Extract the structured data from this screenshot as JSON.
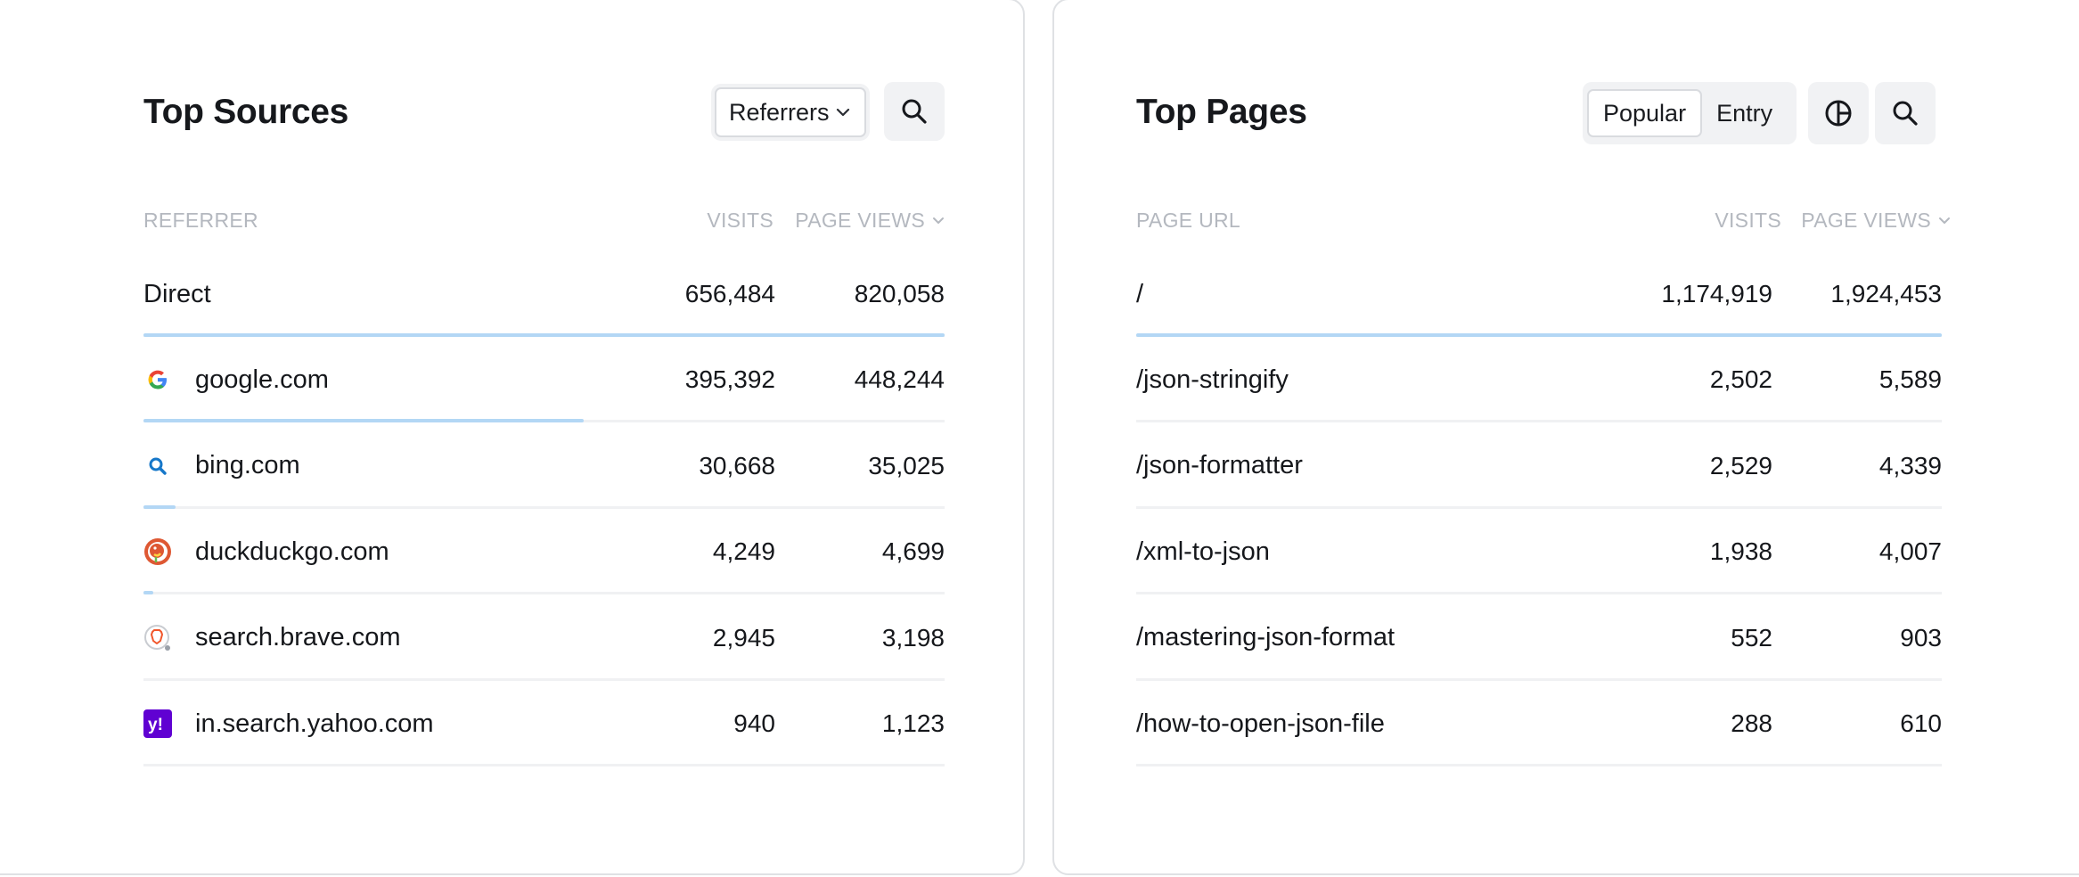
{
  "sources": {
    "title": "Top Sources",
    "select_value": "Referrers",
    "columns": {
      "name": "REFERRER",
      "visits": "VISITS",
      "pageviews": "PAGE VIEWS"
    },
    "rows": [
      {
        "name": "Direct",
        "visits": "656,484",
        "pageviews": "820,058",
        "share": 1.0,
        "icon": "none"
      },
      {
        "name": "google.com",
        "visits": "395,392",
        "pageviews": "448,244",
        "share": 0.55,
        "icon": "google-icon"
      },
      {
        "name": "bing.com",
        "visits": "30,668",
        "pageviews": "35,025",
        "share": 0.04,
        "icon": "bing-icon"
      },
      {
        "name": "duckduckgo.com",
        "visits": "4,249",
        "pageviews": "4,699",
        "share": 0.012,
        "icon": "duckduckgo-icon"
      },
      {
        "name": "search.brave.com",
        "visits": "2,945",
        "pageviews": "3,198",
        "share": 0.0,
        "icon": "brave-icon"
      },
      {
        "name": "in.search.yahoo.com",
        "visits": "940",
        "pageviews": "1,123",
        "share": 0.0,
        "icon": "yahoo-icon"
      }
    ]
  },
  "pages": {
    "title": "Top Pages",
    "tabs": [
      {
        "label": "Popular",
        "active": true
      },
      {
        "label": "Entry",
        "active": false
      }
    ],
    "columns": {
      "name": "PAGE URL",
      "visits": "VISITS",
      "pageviews": "PAGE VIEWS"
    },
    "rows": [
      {
        "name": "/",
        "visits": "1,174,919",
        "pageviews": "1,924,453",
        "share": 1.0
      },
      {
        "name": "/json-stringify",
        "visits": "2,502",
        "pageviews": "5,589",
        "share": 0.0
      },
      {
        "name": "/json-formatter",
        "visits": "2,529",
        "pageviews": "4,339",
        "share": 0.0
      },
      {
        "name": "/xml-to-json",
        "visits": "1,938",
        "pageviews": "4,007",
        "share": 0.0
      },
      {
        "name": "/mastering-json-format",
        "visits": "552",
        "pageviews": "903",
        "share": 0.0
      },
      {
        "name": "/how-to-open-json-file",
        "visits": "288",
        "pageviews": "610",
        "share": 0.0
      }
    ]
  },
  "colors": {
    "bar": "#b3d7f5",
    "divider": "#f0f1f3",
    "header_text": "#b4b8bf",
    "button_bg": "#f1f2f4"
  }
}
